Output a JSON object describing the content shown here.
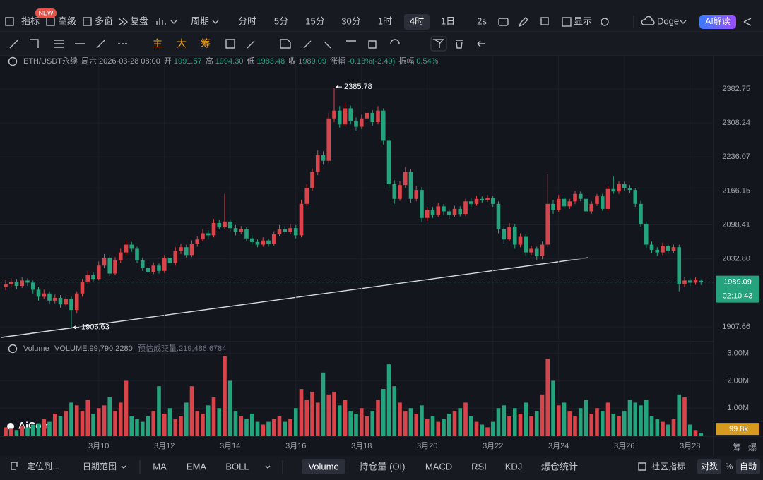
{
  "toolbar": {
    "indicators": "指标",
    "advanced": "高级",
    "new_badge": "NEW",
    "multi_window": "多窗",
    "replay": "复盘",
    "period": "周期",
    "intervals": [
      "分时",
      "5分",
      "15分",
      "30分",
      "1时",
      "4时",
      "1日"
    ],
    "selected_interval": "4时",
    "speed": "2s",
    "display": "显示",
    "theme": "Doge",
    "ai": "AI解读",
    "chip_labels": [
      "主",
      "大",
      "筹"
    ]
  },
  "info": {
    "symbol": "ETH/USDT永续",
    "datetime": "周六 2026-03-28 08:00",
    "open_label": "开",
    "open": "1991.57",
    "high_label": "高",
    "high": "1994.30",
    "low_label": "低",
    "low": "1983.48",
    "close_label": "收",
    "close": "1989.09",
    "change_label": "涨幅",
    "change": "-0.13%(-2.49)",
    "amplitude_label": "振幅",
    "amplitude": "0.54%"
  },
  "volume_info": {
    "name": "Volume",
    "value": "VOLUME:99,790.2280",
    "estimate": "预估成交量:219,486.6784"
  },
  "brand": "AiCoin",
  "chart_data": {
    "type": "candlestick",
    "log_scale": true,
    "grid": true,
    "up_color": "#d9444b",
    "down_color": "#25a37c",
    "ylim": [
      1882.6,
      2428.8
    ],
    "yticks": [
      2382.75,
      2308.24,
      2236.07,
      2166.15,
      2098.41,
      {
        "value": 2032.8,
        "label": "2032.80"
      },
      1907.66
    ],
    "countdown": "02:10:43",
    "categories": [
      null,
      null,
      null,
      null,
      null,
      null,
      null,
      null,
      null,
      null,
      null,
      null,
      null,
      null,
      null,
      null,
      null,
      "3月10",
      null,
      null,
      null,
      null,
      null,
      null,
      null,
      null,
      null,
      null,
      null,
      "3月12",
      null,
      null,
      null,
      null,
      null,
      null,
      null,
      null,
      null,
      null,
      null,
      "3月14",
      null,
      null,
      null,
      null,
      null,
      null,
      null,
      null,
      null,
      null,
      null,
      "3月16",
      null,
      null,
      null,
      null,
      null,
      null,
      null,
      null,
      null,
      null,
      null,
      "3月18",
      null,
      null,
      null,
      null,
      null,
      null,
      null,
      null,
      null,
      null,
      null,
      "3月20",
      null,
      null,
      null,
      null,
      null,
      null,
      null,
      null,
      null,
      null,
      null,
      "3月22",
      null,
      null,
      null,
      null,
      null,
      null,
      null,
      null,
      null,
      null,
      null,
      "3月24",
      null,
      null,
      null,
      null,
      null,
      null,
      null,
      null,
      null,
      null,
      null,
      "3月26",
      null,
      null,
      null,
      null,
      null,
      null,
      null,
      null,
      null,
      null,
      null,
      "3月28",
      null,
      null
    ],
    "ohlc": [
      [
        1980,
        1993,
        1974,
        1985
      ],
      [
        1985,
        1996,
        1980,
        1990
      ],
      [
        1990,
        1995,
        1976,
        1982
      ],
      [
        1982,
        1998,
        1978,
        1992
      ],
      [
        1992,
        1996,
        1982,
        1988
      ],
      [
        1988,
        1992,
        1968,
        1975
      ],
      [
        1975,
        1980,
        1955,
        1962
      ],
      [
        1962,
        1975,
        1958,
        1968
      ],
      [
        1968,
        1972,
        1948,
        1955
      ],
      [
        1955,
        1966,
        1950,
        1960
      ],
      [
        1960,
        1965,
        1942,
        1948
      ],
      [
        1948,
        1962,
        1944,
        1958
      ],
      [
        1958,
        1962,
        1906.63,
        1938
      ],
      [
        1938,
        1972,
        1932,
        1968
      ],
      [
        1968,
        1995,
        1962,
        1990
      ],
      [
        1990,
        2010,
        1985,
        2002
      ],
      [
        2002,
        2008,
        1990,
        1995
      ],
      [
        1995,
        2028,
        1992,
        2020
      ],
      [
        2020,
        2042,
        2015,
        2035
      ],
      [
        2035,
        2040,
        2000,
        2005
      ],
      [
        2005,
        2036,
        2002,
        2030
      ],
      [
        2030,
        2052,
        2025,
        2045
      ],
      [
        2045,
        2068,
        2040,
        2060
      ],
      [
        2060,
        2065,
        2046,
        2052
      ],
      [
        2052,
        2056,
        2025,
        2030
      ],
      [
        2030,
        2035,
        2010,
        2015
      ],
      [
        2015,
        2022,
        2002,
        2008
      ],
      [
        2008,
        2026,
        2004,
        2020
      ],
      [
        2020,
        2024,
        2005,
        2010
      ],
      [
        2010,
        2040,
        2006,
        2035
      ],
      [
        2035,
        2040,
        2020,
        2025
      ],
      [
        2025,
        2055,
        2020,
        2048
      ],
      [
        2048,
        2062,
        2042,
        2055
      ],
      [
        2055,
        2060,
        2035,
        2040
      ],
      [
        2040,
        2068,
        2036,
        2062
      ],
      [
        2062,
        2076,
        2056,
        2070
      ],
      [
        2070,
        2090,
        2066,
        2082
      ],
      [
        2082,
        2088,
        2072,
        2078
      ],
      [
        2078,
        2110,
        2074,
        2102
      ],
      [
        2102,
        2108,
        2090,
        2095
      ],
      [
        2095,
        2160,
        2090,
        2105
      ],
      [
        2105,
        2110,
        2086,
        2092
      ],
      [
        2092,
        2098,
        2078,
        2085
      ],
      [
        2085,
        2096,
        2080,
        2090
      ],
      [
        2090,
        2094,
        2066,
        2072
      ],
      [
        2072,
        2078,
        2060,
        2065
      ],
      [
        2065,
        2070,
        2055,
        2060
      ],
      [
        2060,
        2074,
        2056,
        2068
      ],
      [
        2068,
        2072,
        2056,
        2062
      ],
      [
        2062,
        2086,
        2058,
        2080
      ],
      [
        2080,
        2098,
        2076,
        2090
      ],
      [
        2090,
        2096,
        2080,
        2085
      ],
      [
        2085,
        2100,
        2080,
        2092
      ],
      [
        2092,
        2098,
        2072,
        2078
      ],
      [
        2078,
        2148,
        2074,
        2140
      ],
      [
        2140,
        2180,
        2135,
        2172
      ],
      [
        2172,
        2212,
        2166,
        2205
      ],
      [
        2205,
        2250,
        2198,
        2240
      ],
      [
        2240,
        2248,
        2220,
        2228
      ],
      [
        2228,
        2330,
        2222,
        2318
      ],
      [
        2318,
        2385.78,
        2310,
        2335
      ],
      [
        2335,
        2345,
        2298,
        2305
      ],
      [
        2305,
        2352,
        2300,
        2340
      ],
      [
        2340,
        2346,
        2305,
        2312
      ],
      [
        2312,
        2320,
        2292,
        2300
      ],
      [
        2300,
        2326,
        2295,
        2318
      ],
      [
        2318,
        2340,
        2312,
        2330
      ],
      [
        2330,
        2336,
        2302,
        2310
      ],
      [
        2310,
        2345,
        2305,
        2335
      ],
      [
        2335,
        2340,
        2262,
        2270
      ],
      [
        2270,
        2278,
        2172,
        2180
      ],
      [
        2180,
        2188,
        2140,
        2150
      ],
      [
        2150,
        2186,
        2146,
        2178
      ],
      [
        2178,
        2215,
        2172,
        2205
      ],
      [
        2205,
        2210,
        2142,
        2150
      ],
      [
        2150,
        2176,
        2145,
        2168
      ],
      [
        2168,
        2174,
        2104,
        2112
      ],
      [
        2112,
        2134,
        2106,
        2128
      ],
      [
        2128,
        2134,
        2112,
        2118
      ],
      [
        2118,
        2142,
        2114,
        2135
      ],
      [
        2135,
        2140,
        2118,
        2125
      ],
      [
        2125,
        2130,
        2110,
        2118
      ],
      [
        2118,
        2136,
        2114,
        2130
      ],
      [
        2130,
        2135,
        2115,
        2120
      ],
      [
        2120,
        2150,
        2116,
        2145
      ],
      [
        2145,
        2152,
        2134,
        2140
      ],
      [
        2140,
        2156,
        2136,
        2150
      ],
      [
        2150,
        2155,
        2142,
        2148
      ],
      [
        2148,
        2158,
        2144,
        2152
      ],
      [
        2152,
        2156,
        2134,
        2140
      ],
      [
        2140,
        2145,
        2082,
        2090
      ],
      [
        2090,
        2096,
        2062,
        2070
      ],
      [
        2070,
        2102,
        2066,
        2095
      ],
      [
        2095,
        2100,
        2052,
        2060
      ],
      [
        2060,
        2082,
        2055,
        2075
      ],
      [
        2075,
        2080,
        2038,
        2045
      ],
      [
        2045,
        2058,
        2040,
        2052
      ],
      [
        2052,
        2056,
        2030,
        2038
      ],
      [
        2038,
        2066,
        2032,
        2060
      ],
      [
        2060,
        2200,
        2055,
        2140
      ],
      [
        2140,
        2148,
        2120,
        2128
      ],
      [
        2128,
        2158,
        2124,
        2150
      ],
      [
        2150,
        2155,
        2130,
        2135
      ],
      [
        2135,
        2150,
        2130,
        2145
      ],
      [
        2145,
        2166,
        2140,
        2160
      ],
      [
        2160,
        2165,
        2145,
        2150
      ],
      [
        2150,
        2154,
        2120,
        2125
      ],
      [
        2125,
        2145,
        2120,
        2140
      ],
      [
        2140,
        2160,
        2136,
        2155
      ],
      [
        2155,
        2160,
        2126,
        2130
      ],
      [
        2130,
        2176,
        2126,
        2170
      ],
      [
        2170,
        2196,
        2160,
        2165
      ],
      [
        2165,
        2186,
        2160,
        2180
      ],
      [
        2180,
        2185,
        2166,
        2172
      ],
      [
        2172,
        2178,
        2162,
        2168
      ],
      [
        2168,
        2172,
        2134,
        2140
      ],
      [
        2140,
        2146,
        2095,
        2100
      ],
      [
        2100,
        2105,
        2054,
        2060
      ],
      [
        2060,
        2066,
        2044,
        2050
      ],
      [
        2050,
        2055,
        2038,
        2045
      ],
      [
        2045,
        2064,
        2040,
        2058
      ],
      [
        2058,
        2062,
        2042,
        2048
      ],
      [
        2048,
        2060,
        2044,
        2055
      ],
      [
        2055,
        2060,
        1972,
        1985
      ],
      [
        1985,
        1998,
        1980,
        1992
      ],
      [
        1992,
        1996,
        1982,
        1988
      ],
      [
        1988,
        1998,
        1984,
        1994
      ],
      [
        1991.57,
        1994.3,
        1983.48,
        1989.09
      ]
    ],
    "volume": [
      0.3,
      0.25,
      0.2,
      0.35,
      0.3,
      0.4,
      0.45,
      0.6,
      0.5,
      0.8,
      0.7,
      0.9,
      1.2,
      1.1,
      0.9,
      1.3,
      0.8,
      1.0,
      1.1,
      1.4,
      0.9,
      1.2,
      2.0,
      0.7,
      0.6,
      0.5,
      0.7,
      0.9,
      1.8,
      0.8,
      1.0,
      0.6,
      0.7,
      1.2,
      1.8,
      0.9,
      0.8,
      1.1,
      1.4,
      1.0,
      2.9,
      2.0,
      0.9,
      0.7,
      0.6,
      0.8,
      0.5,
      0.4,
      0.5,
      0.6,
      0.7,
      0.5,
      0.6,
      1.0,
      1.7,
      1.3,
      1.6,
      1.2,
      2.3,
      1.5,
      1.6,
      1.1,
      1.3,
      0.9,
      0.8,
      1.0,
      0.7,
      0.9,
      1.3,
      1.7,
      2.6,
      1.8,
      1.2,
      0.9,
      1.0,
      0.8,
      1.1,
      0.6,
      0.7,
      0.5,
      0.6,
      0.8,
      0.9,
      1.0,
      1.2,
      0.7,
      0.5,
      0.4,
      0.3,
      0.5,
      1.0,
      1.1,
      0.7,
      1.0,
      0.8,
      1.2,
      0.7,
      0.9,
      1.5,
      2.8,
      2.0,
      1.1,
      1.2,
      0.9,
      0.7,
      1.0,
      1.3,
      0.8,
      1.0,
      0.9,
      1.2,
      0.8,
      0.7,
      0.9,
      1.3,
      1.2,
      1.1,
      1.3,
      0.7,
      0.6,
      0.5,
      0.4,
      0.6,
      1.5,
      1.4,
      0.4,
      0.2,
      0.0998
    ],
    "volume_ylim": [
      0,
      3.3
    ],
    "volume_yticks": [
      {
        "value": 3,
        "label": "3.00M"
      },
      {
        "value": 2,
        "label": "2.00M"
      },
      {
        "value": 1,
        "label": "1.00M"
      }
    ],
    "volume_current_label": "99.8k",
    "side_labels": [
      "筹",
      "爆"
    ]
  },
  "bottom_bar": {
    "locate": "定位到...",
    "date_range": "日期范围",
    "indicators": [
      "MA",
      "EMA",
      "BOLL",
      "Volume",
      "持仓量 (OI)",
      "MACD",
      "RSI",
      "KDJ",
      "爆仓统计"
    ],
    "selected": "Volume",
    "community": "社区指标",
    "log": "对数",
    "percent": "%",
    "auto": "自动"
  }
}
